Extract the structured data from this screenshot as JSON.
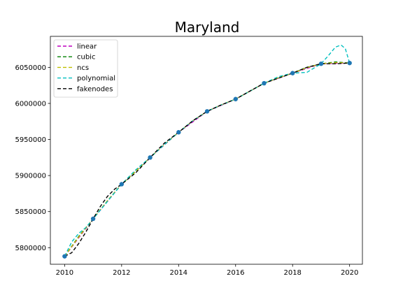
{
  "chart_data": {
    "type": "line",
    "title": "Maryland",
    "xlabel": "",
    "ylabel": "",
    "xlim": [
      2009.5,
      2020.45
    ],
    "ylim": [
      5777000,
      6093000
    ],
    "xticks": [
      2010,
      2012,
      2014,
      2016,
      2018,
      2020
    ],
    "yticks": [
      5800000,
      5850000,
      5900000,
      5950000,
      6000000,
      6050000
    ],
    "grid": false,
    "legend_position": "top-left",
    "colors": {
      "linear": "#bf00bf",
      "cubic": "#008000",
      "ncs": "#bfbf00",
      "polynomial": "#00bfbf",
      "fakenodes": "#000000",
      "markers": "#1f77b4"
    },
    "points": {
      "x": [
        2010,
        2011,
        2012,
        2013,
        2014,
        2015,
        2016,
        2017,
        2018,
        2019,
        2020
      ],
      "y": [
        5788000,
        5840000,
        5888000,
        5925000,
        5960000,
        5989000,
        6006000,
        6028000,
        6042000,
        6055000,
        6056000
      ]
    },
    "series": [
      {
        "name": "linear",
        "x": [
          2010,
          2011,
          2012,
          2013,
          2014,
          2015,
          2016,
          2017,
          2018,
          2019,
          2020
        ],
        "y": [
          5788000,
          5840000,
          5888000,
          5925000,
          5960000,
          5989000,
          6006000,
          6028000,
          6042000,
          6055000,
          6056000
        ]
      },
      {
        "name": "cubic",
        "x": [
          2010,
          2010.5,
          2011,
          2011.5,
          2012,
          2012.5,
          2013,
          2013.5,
          2014,
          2014.5,
          2015,
          2015.5,
          2016,
          2016.5,
          2017,
          2017.5,
          2018,
          2018.5,
          2019,
          2019.5,
          2020
        ],
        "y": [
          5788000,
          5816000,
          5840000,
          5865000,
          5888000,
          5906000,
          5925000,
          5943000,
          5960000,
          5976000,
          5989000,
          5998000,
          6006000,
          6017000,
          6028000,
          6035500,
          6042000,
          6050000,
          6055000,
          6057500,
          6056000
        ]
      },
      {
        "name": "ncs",
        "x": [
          2010,
          2010.5,
          2011,
          2011.5,
          2012,
          2012.5,
          2013,
          2013.5,
          2014,
          2014.5,
          2015,
          2015.5,
          2016,
          2016.5,
          2017,
          2017.5,
          2018,
          2018.5,
          2019,
          2019.5,
          2020
        ],
        "y": [
          5788000,
          5815000,
          5840000,
          5865000,
          5888000,
          5906000,
          5925000,
          5943000,
          5960000,
          5976000,
          5989000,
          5998000,
          6006000,
          6017000,
          6028000,
          6035500,
          6042000,
          6049500,
          6055000,
          6056500,
          6056000
        ]
      },
      {
        "name": "polynomial",
        "x": [
          2010,
          2010.25,
          2010.5,
          2010.75,
          2011,
          2011.5,
          2012,
          2012.5,
          2013,
          2013.5,
          2014,
          2014.5,
          2015,
          2015.5,
          2016,
          2016.5,
          2017,
          2017.5,
          2018,
          2018.5,
          2019,
          2019.25,
          2019.5,
          2019.7,
          2019.85,
          2020
        ],
        "y": [
          5788000,
          5808000,
          5820000,
          5828000,
          5840000,
          5864000,
          5888000,
          5908000,
          5925000,
          5943000,
          5960000,
          5976000,
          5989000,
          5998000,
          6006000,
          6017000,
          6028000,
          6037000,
          6042000,
          6043000,
          6055000,
          6066000,
          6078000,
          6081000,
          6076000,
          6056000
        ]
      },
      {
        "name": "fakenodes",
        "x": [
          2010,
          2010.25,
          2010.5,
          2010.75,
          2011,
          2011.25,
          2011.5,
          2011.75,
          2012,
          2012.5,
          2013,
          2013.5,
          2014,
          2014.5,
          2015,
          2015.5,
          2016,
          2016.5,
          2017,
          2017.5,
          2018,
          2018.5,
          2019,
          2019.5,
          2020
        ],
        "y": [
          5788000,
          5793000,
          5806000,
          5822000,
          5840000,
          5857000,
          5871000,
          5881000,
          5888000,
          5904000,
          5925000,
          5945000,
          5960000,
          5976000,
          5989000,
          5998000,
          6006000,
          6017000,
          6028000,
          6035000,
          6042000,
          6050000,
          6055000,
          6055000,
          6056000
        ]
      }
    ]
  }
}
